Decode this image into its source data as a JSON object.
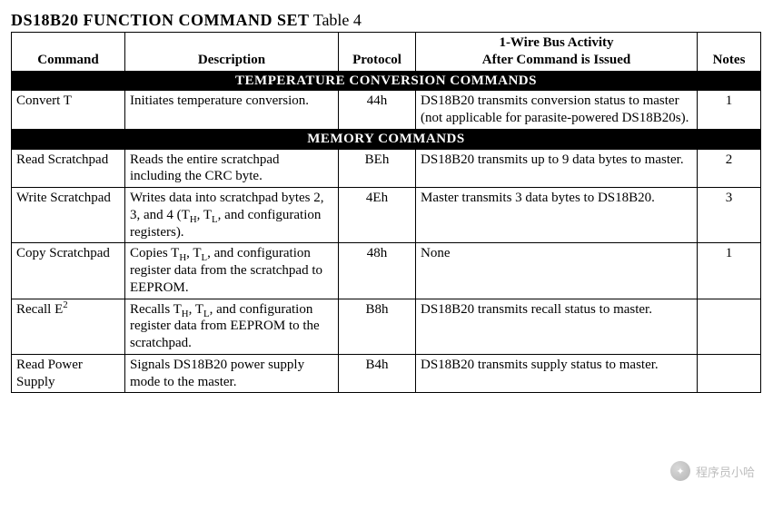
{
  "title_bold": "DS18B20 FUNCTION COMMAND SET",
  "title_plain": " Table 4",
  "headers": {
    "command": "Command",
    "description": "Description",
    "protocol": "Protocol",
    "activity_l1": "1-Wire Bus Activity",
    "activity_l2": "After Command is Issued",
    "notes": "Notes"
  },
  "sections": [
    {
      "label": "TEMPERATURE CONVERSION COMMANDS",
      "rows": [
        {
          "command": "Convert T",
          "description": "Initiates temperature conversion.",
          "protocol": "44h",
          "activity": "DS18B20 transmits conversion status to master (not applicable for parasite-powered DS18B20s).",
          "notes": "1",
          "desc_html": false,
          "cmd_html": false
        }
      ]
    },
    {
      "label": "MEMORY COMMANDS",
      "rows": [
        {
          "command": "Read Scratchpad",
          "description": "Reads the entire scratchpad including the CRC byte.",
          "protocol": "BEh",
          "activity": "DS18B20 transmits up to 9 data bytes to master.",
          "notes": "2",
          "desc_html": false,
          "cmd_html": false
        },
        {
          "command": "Write Scratchpad",
          "description": "Writes data into scratchpad bytes 2, 3, and 4 (T<sub>H</sub>, T<sub>L</sub>, and configuration registers).",
          "protocol": "4Eh",
          "activity": "Master transmits 3 data bytes to DS18B20.",
          "notes": "3",
          "desc_html": true,
          "cmd_html": false
        },
        {
          "command": "Copy Scratchpad",
          "description": "Copies T<sub>H</sub>, T<sub>L</sub>, and configuration register data from the scratchpad to EEPROM.",
          "protocol": "48h",
          "activity": "None",
          "notes": "1",
          "desc_html": true,
          "cmd_html": false
        },
        {
          "command": "Recall E<sup>2</sup>",
          "description": "Recalls T<sub>H</sub>, T<sub>L</sub>, and configuration register data from EEPROM to the scratchpad.",
          "protocol": "B8h",
          "activity": "DS18B20 transmits recall status to master.",
          "notes": "",
          "desc_html": true,
          "cmd_html": true
        },
        {
          "command": "Read Power Supply",
          "description": "Signals DS18B20 power supply mode to the master.",
          "protocol": "B4h",
          "activity": "DS18B20 transmits supply status to master.",
          "notes": "",
          "desc_html": false,
          "cmd_html": false
        }
      ]
    }
  ],
  "watermark": "程序员小哈"
}
